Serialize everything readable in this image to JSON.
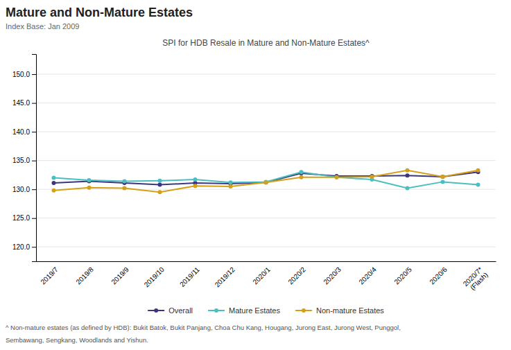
{
  "chart_data": {
    "type": "line",
    "title": "Mature and Non-Mature Estates",
    "subtitle": "Index Base: Jan 2009",
    "annotations": [
      "SPI for HDB Resale in Mature and Non-Mature Estates^",
      "^ Non-mature estates (as defined by HDB): Bukit Batok, Bukit Panjang, Choa Chu Kang, Hougang, Jurong East, Jurong West, Punggol,",
      "Sembawang, Sengkang, Woodlands and Yishun."
    ],
    "categories": [
      "2019/7",
      "2019/8",
      "2019/9",
      "2019/10",
      "2019/11",
      "2019/12",
      "2020/1",
      "2020/2",
      "2020/3",
      "2020/4",
      "2020/5",
      "2020/6",
      "2020/7*\n(Flash)"
    ],
    "series": [
      {
        "name": "Overall",
        "color": "#3d3580",
        "marker": "circle",
        "values": [
          131.1,
          131.4,
          131.1,
          130.8,
          131.1,
          131.0,
          131.2,
          132.8,
          132.3,
          132.3,
          132.4,
          132.2,
          133.0
        ]
      },
      {
        "name": "Mature Estates",
        "color": "#4bbfbf",
        "marker": "circle",
        "values": [
          132.0,
          131.6,
          131.4,
          131.5,
          131.7,
          131.2,
          131.3,
          133.0,
          132.1,
          131.7,
          130.2,
          131.3,
          130.8
        ]
      },
      {
        "name": "Non-mature Estates",
        "color": "#d4a017",
        "marker": "circle",
        "values": [
          129.8,
          130.3,
          130.2,
          129.5,
          130.6,
          130.5,
          131.2,
          132.1,
          132.1,
          132.2,
          133.3,
          132.2,
          133.3
        ]
      }
    ],
    "ylim": [
      117.5,
      153.5
    ],
    "yticks": [
      {
        "value": 120.0,
        "label": "120.0"
      },
      {
        "value": 125.0,
        "label": "125.0"
      },
      {
        "value": 130.0,
        "label": "130.0"
      },
      {
        "value": 135.0,
        "label": "135.0"
      },
      {
        "value": 140.0,
        "label": "140.0"
      },
      {
        "value": 145.0,
        "label": "145.0"
      },
      {
        "value": 150.0,
        "label": "150.0"
      }
    ],
    "grid": true,
    "legend": "bottom"
  }
}
